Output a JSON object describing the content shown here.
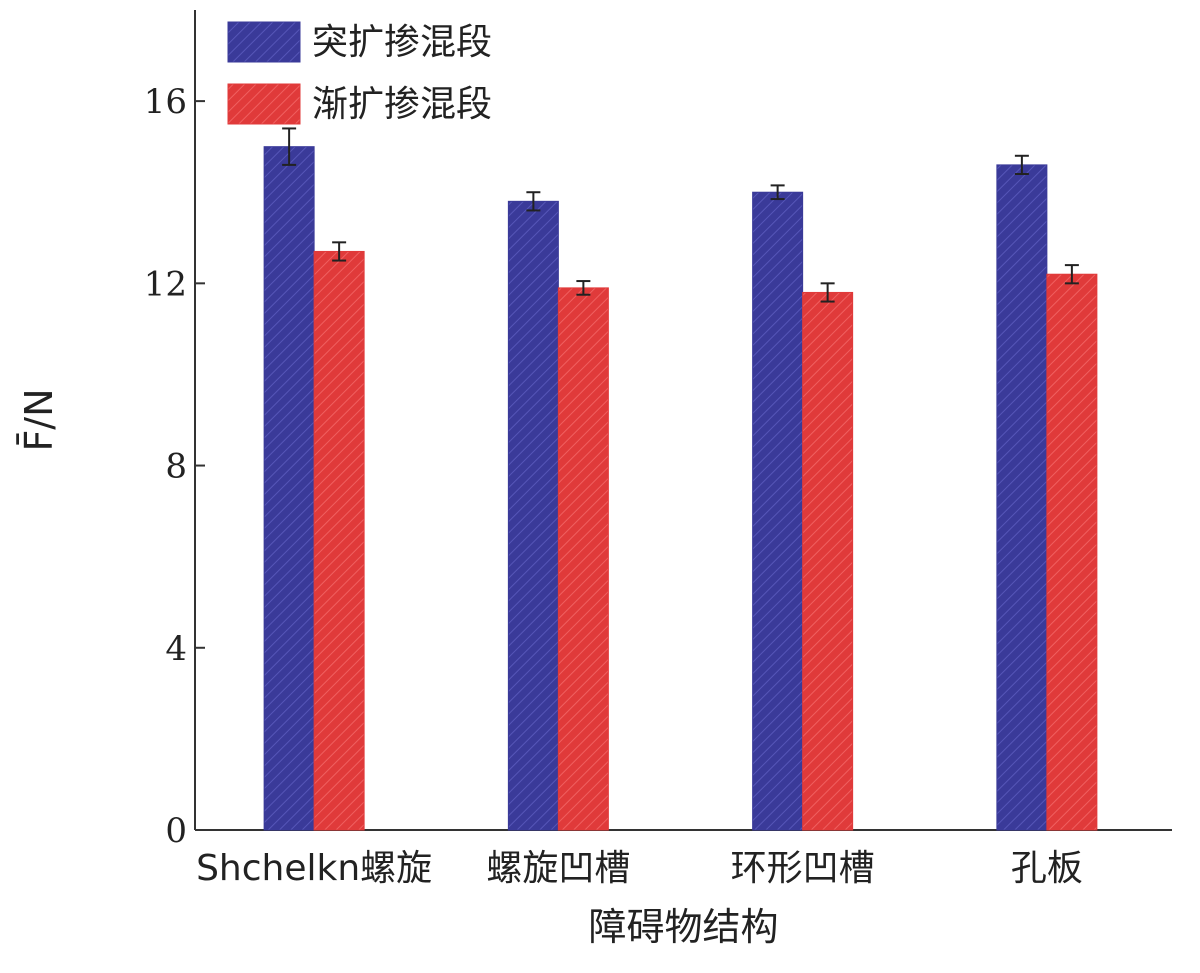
{
  "chart_data": {
    "type": "bar",
    "xlabel": "障碍物结构",
    "ylabel": "F̄/N",
    "ylim": [
      0,
      18
    ],
    "yticks": [
      0,
      4,
      8,
      12,
      16
    ],
    "categories": [
      "Shchelkn螺旋",
      "螺旋凹槽",
      "环形凹槽",
      "孔板"
    ],
    "legend_position": "top-left",
    "series": [
      {
        "name": "突扩掺混段",
        "color": "#3a3a99",
        "values": [
          15.0,
          13.8,
          14.0,
          14.6
        ],
        "errors": [
          0.4,
          0.2,
          0.15,
          0.2
        ]
      },
      {
        "name": "渐扩掺混段",
        "color": "#e03a3a",
        "values": [
          12.7,
          11.9,
          11.8,
          12.2
        ],
        "errors": [
          0.2,
          0.15,
          0.2,
          0.2
        ]
      }
    ]
  }
}
